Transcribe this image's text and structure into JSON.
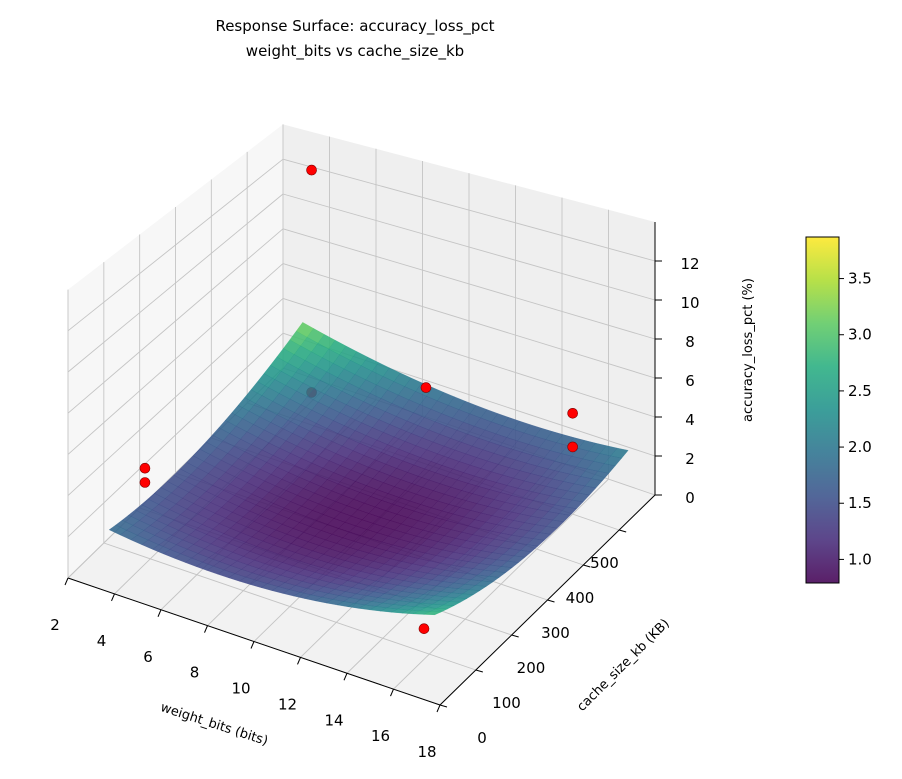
{
  "chart_data": {
    "type": "surface3d",
    "title": "Response Surface: accuracy_loss_pct",
    "subtitle": "weight_bits vs cache_size_kb",
    "xlabel": "weight_bits (bits)",
    "ylabel": "cache_size_kb (KB)",
    "zlabel": "accuracy_loss_pct (%)",
    "xlim": [
      2,
      18
    ],
    "ylim": [
      0,
      600
    ],
    "zlim": [
      0,
      14
    ],
    "x_ticks": [
      2,
      4,
      6,
      8,
      10,
      12,
      14,
      16,
      18
    ],
    "y_ticks": [
      0,
      100,
      200,
      300,
      400,
      500
    ],
    "z_ticks": [
      0,
      2,
      4,
      6,
      8,
      10,
      12
    ],
    "grid": true,
    "colormap": "viridis",
    "colorbar": {
      "range": [
        0.79,
        3.87
      ],
      "ticks": [
        "1.0",
        "1.5",
        "2.0",
        "2.5",
        "3.0",
        "3.5"
      ],
      "placement": "right"
    },
    "surface": {
      "x_range": [
        3,
        17
      ],
      "y_range": [
        50,
        590
      ],
      "model": "quadratic",
      "min_value": 0.8,
      "center": [
        10,
        300
      ],
      "coef_x2": 0.017,
      "coef_y2": 1.22e-05,
      "coef_xy": -0.00029
    },
    "points": [
      {
        "x": 4,
        "y": 550,
        "z": 12.9
      },
      {
        "x": 4,
        "y": 550,
        "z": 0.5
      },
      {
        "x": 4,
        "y": 85,
        "z": 4.7
      },
      {
        "x": 4,
        "y": 85,
        "z": 4.0
      },
      {
        "x": 10,
        "y": 480,
        "z": 4.5
      },
      {
        "x": 16,
        "y": 500,
        "z": 5.1
      },
      {
        "x": 16,
        "y": 500,
        "z": 3.4
      },
      {
        "x": 15,
        "y": 150,
        "z": 0.0
      }
    ],
    "point_color": "#ff0000"
  }
}
